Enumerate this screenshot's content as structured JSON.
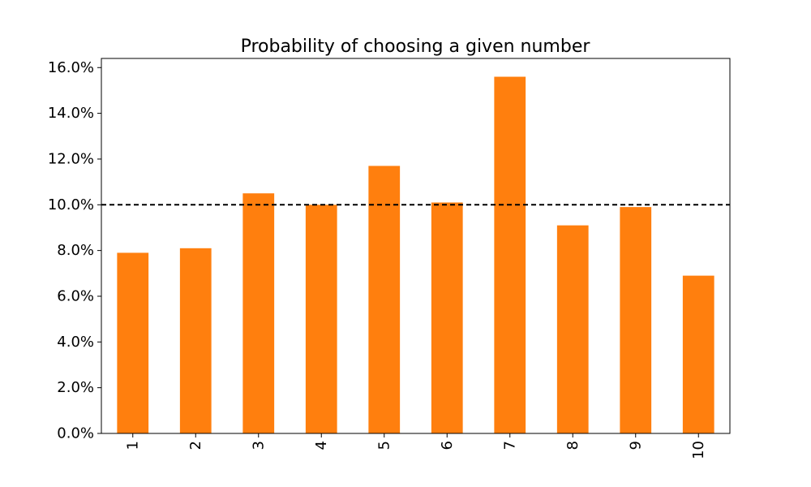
{
  "chart_data": {
    "type": "bar",
    "title": "Probability of choosing a given number",
    "xlabel": "",
    "ylabel": "",
    "categories": [
      "1",
      "2",
      "3",
      "4",
      "5",
      "6",
      "7",
      "8",
      "9",
      "10"
    ],
    "values": [
      7.9,
      8.1,
      10.5,
      10.0,
      11.7,
      10.1,
      15.6,
      9.1,
      9.9,
      6.9
    ],
    "y_unit": "%",
    "ylim": [
      0,
      16.4
    ],
    "yticks": [
      0,
      2,
      4,
      6,
      8,
      10,
      12,
      14,
      16
    ],
    "ytick_labels": [
      "0.0%",
      "2.0%",
      "4.0%",
      "6.0%",
      "8.0%",
      "10.0%",
      "12.0%",
      "14.0%",
      "16.0%"
    ],
    "reference_line": {
      "y": 10.0,
      "style": "dashed",
      "color": "#000000"
    },
    "bar_color": "#ff7f0e",
    "x_tick_rotation": "vertical",
    "grid": false,
    "legend": "none"
  }
}
